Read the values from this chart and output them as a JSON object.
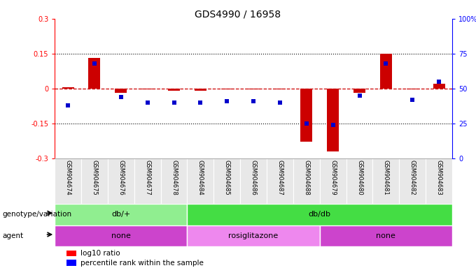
{
  "title": "GDS4990 / 16958",
  "samples": [
    "GSM904674",
    "GSM904675",
    "GSM904676",
    "GSM904677",
    "GSM904678",
    "GSM904684",
    "GSM904685",
    "GSM904686",
    "GSM904687",
    "GSM904688",
    "GSM904679",
    "GSM904680",
    "GSM904681",
    "GSM904682",
    "GSM904683"
  ],
  "log10_ratio": [
    0.005,
    0.13,
    -0.02,
    -0.005,
    -0.01,
    -0.01,
    -0.005,
    -0.005,
    -0.005,
    -0.23,
    -0.27,
    -0.02,
    0.15,
    -0.005,
    0.02
  ],
  "percentile_rank": [
    38,
    68,
    44,
    40,
    40,
    40,
    41,
    41,
    40,
    25,
    24,
    45,
    68,
    42,
    55
  ],
  "ylim_left": [
    -0.3,
    0.3
  ],
  "ylim_right": [
    0,
    100
  ],
  "genotype_groups": [
    {
      "label": "db/+",
      "start": 0,
      "end": 5,
      "color": "#90ee90"
    },
    {
      "label": "db/db",
      "start": 5,
      "end": 15,
      "color": "#44dd44"
    }
  ],
  "agent_groups": [
    {
      "label": "none",
      "start": 0,
      "end": 5,
      "color": "#cc44cc"
    },
    {
      "label": "rosiglitazone",
      "start": 5,
      "end": 10,
      "color": "#ee88ee"
    },
    {
      "label": "none",
      "start": 10,
      "end": 15,
      "color": "#cc44cc"
    }
  ],
  "bar_color": "#cc0000",
  "dot_color": "#0000cc",
  "hline_color": "#cc0000",
  "bg_color": "#ffffff",
  "title_fontsize": 10,
  "tick_fontsize": 7,
  "label_fontsize": 7.5,
  "sample_fontsize": 6,
  "legend_fontsize": 7.5,
  "row_label_fontsize": 7.5
}
